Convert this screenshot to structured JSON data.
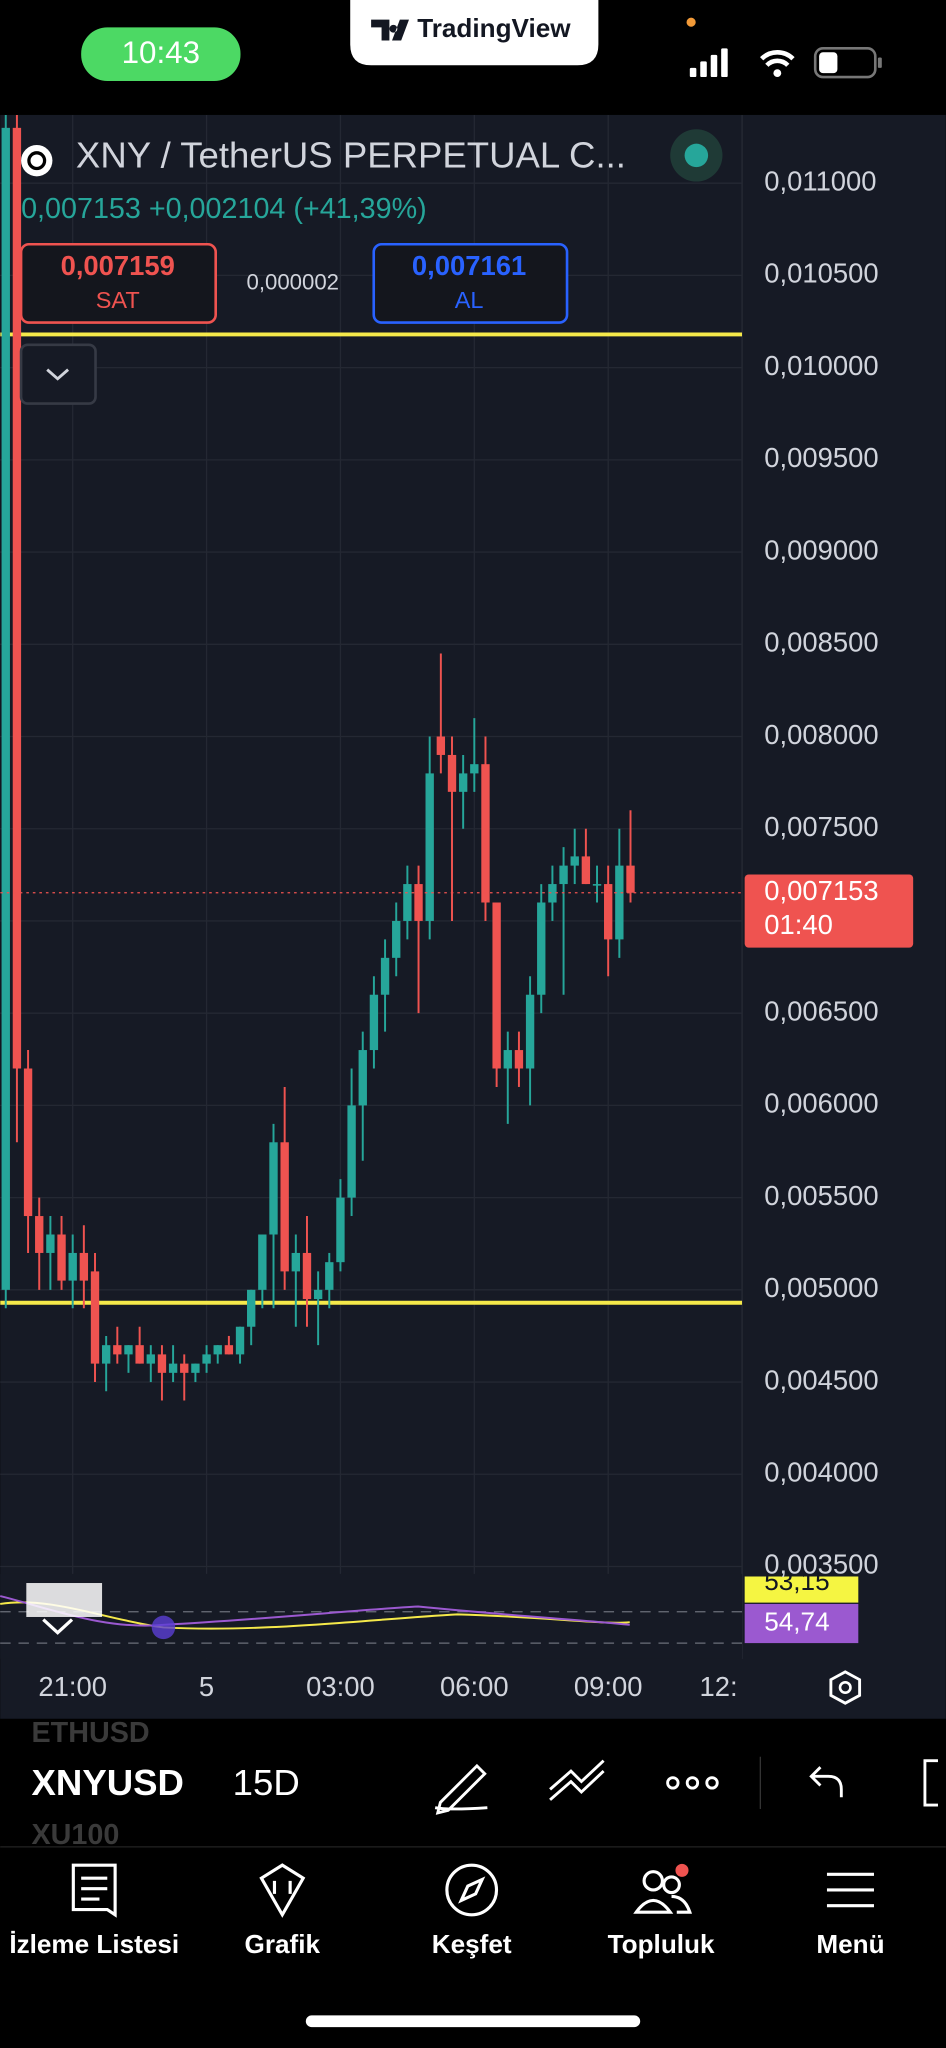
{
  "status_bar": {
    "time": "10:43",
    "app": "TradingView"
  },
  "header": {
    "symbol": "XNY / TetherUS PERPETUAL C...",
    "quote": "0,007153 +0,002104 (+41,39%)",
    "sell_price": "0,007159",
    "sell": "SAT",
    "spread": "0,000002",
    "buy_price": "0,007161",
    "buy": "AL"
  },
  "chart_data": {
    "type": "candlestick",
    "open": [
      0.005,
      0.0113,
      0.0062,
      0.0054,
      0.0052,
      0.0053,
      0.00505,
      0.0052,
      0.0051,
      0.0046,
      0.0047,
      0.00465,
      0.0047,
      0.0046,
      0.00465,
      0.00455,
      0.0046,
      0.00455,
      0.0046,
      0.00465,
      0.0047,
      0.00465,
      0.0048,
      0.005,
      0.0053,
      0.0058,
      0.0051,
      0.0052,
      0.00495,
      0.005,
      0.00515,
      0.0055,
      0.006,
      0.0063,
      0.0066,
      0.0068,
      0.007,
      0.0072,
      0.007,
      0.008,
      0.0079,
      0.0077,
      0.0078,
      0.00785,
      0.0071,
      0.0062,
      0.0063,
      0.0062,
      0.0066,
      0.0071,
      0.0072,
      0.0073,
      0.00735,
      0.0072,
      0.0072,
      0.0069,
      0.0073
    ],
    "high": [
      0.0114,
      0.0114,
      0.0063,
      0.0055,
      0.0054,
      0.0054,
      0.0053,
      0.00535,
      0.0052,
      0.00475,
      0.0048,
      0.0047,
      0.0048,
      0.0047,
      0.0047,
      0.0047,
      0.00465,
      0.0046,
      0.0047,
      0.0047,
      0.00475,
      0.0048,
      0.005,
      0.0053,
      0.0059,
      0.0061,
      0.0053,
      0.0054,
      0.0051,
      0.0052,
      0.0056,
      0.0062,
      0.0064,
      0.0067,
      0.0069,
      0.0071,
      0.0073,
      0.0073,
      0.008,
      0.00845,
      0.008,
      0.0079,
      0.0081,
      0.008,
      0.0071,
      0.0064,
      0.0064,
      0.0067,
      0.0072,
      0.0073,
      0.0074,
      0.0075,
      0.0075,
      0.0073,
      0.0073,
      0.0075,
      0.0076
    ],
    "low": [
      0.0049,
      0.0058,
      0.0052,
      0.005,
      0.005,
      0.005,
      0.0049,
      0.0049,
      0.0045,
      0.00445,
      0.0046,
      0.00455,
      0.0046,
      0.0045,
      0.0044,
      0.0045,
      0.0044,
      0.0045,
      0.00455,
      0.0046,
      0.00465,
      0.0046,
      0.0047,
      0.0049,
      0.0049,
      0.005,
      0.0048,
      0.0048,
      0.0047,
      0.0049,
      0.0051,
      0.0054,
      0.0057,
      0.0062,
      0.0064,
      0.0067,
      0.0069,
      0.0065,
      0.0069,
      0.0078,
      0.007,
      0.0075,
      0.0077,
      0.007,
      0.0061,
      0.0059,
      0.0061,
      0.006,
      0.0065,
      0.007,
      0.0066,
      0.0072,
      0.0072,
      0.0071,
      0.0067,
      0.0068,
      0.0071
    ],
    "close": [
      0.0113,
      0.0062,
      0.0054,
      0.0052,
      0.0053,
      0.00505,
      0.0052,
      0.00505,
      0.0046,
      0.0047,
      0.00465,
      0.0047,
      0.0046,
      0.00465,
      0.00455,
      0.0046,
      0.00455,
      0.0046,
      0.00465,
      0.0047,
      0.00465,
      0.0048,
      0.005,
      0.0053,
      0.0058,
      0.0051,
      0.0052,
      0.00495,
      0.005,
      0.00515,
      0.0055,
      0.006,
      0.0063,
      0.0066,
      0.0068,
      0.007,
      0.0072,
      0.007,
      0.0078,
      0.0079,
      0.0077,
      0.0078,
      0.00785,
      0.0071,
      0.0062,
      0.0063,
      0.0062,
      0.0066,
      0.0071,
      0.0072,
      0.0073,
      0.00735,
      0.0072,
      0.0072,
      0.0069,
      0.0073,
      0.007153
    ],
    "up_color": "#26a69a",
    "down_color": "#ef5350",
    "xlim": [
      -0.5,
      66
    ],
    "xticks": [
      {
        "value": 6,
        "label": "21:00"
      },
      {
        "value": 18,
        "label": "5"
      },
      {
        "value": 30,
        "label": "03:00"
      },
      {
        "value": 42,
        "label": "06:00"
      },
      {
        "value": 54,
        "label": "09:00"
      },
      {
        "value": 66,
        "label": "12:"
      }
    ],
    "ylim": [
      0.00346,
      0.01137
    ],
    "yticks": [
      {
        "value": 0.0035,
        "label": "0,003500"
      },
      {
        "value": 0.004,
        "label": "0,004000"
      },
      {
        "value": 0.0045,
        "label": "0,004500"
      },
      {
        "value": 0.005,
        "label": "0,005000"
      },
      {
        "value": 0.0055,
        "label": "0,005500"
      },
      {
        "value": 0.006,
        "label": "0,006000"
      },
      {
        "value": 0.0065,
        "label": "0,006500"
      },
      {
        "value": 0.007,
        "label": "0,007000"
      },
      {
        "value": 0.0075,
        "label": "0,007500"
      },
      {
        "value": 0.008,
        "label": "0,008000"
      },
      {
        "value": 0.0085,
        "label": "0,008500"
      },
      {
        "value": 0.009,
        "label": "0,009000"
      },
      {
        "value": 0.0095,
        "label": "0,009500"
      },
      {
        "value": 0.01,
        "label": "0,010000"
      },
      {
        "value": 0.0105,
        "label": "0,010500"
      },
      {
        "value": 0.011,
        "label": "0,011000"
      }
    ],
    "grid": true,
    "last_price": {
      "value": 0.007153,
      "label": "0,007153",
      "countdown": "01:40"
    },
    "hlines": [
      0.01018,
      0.00493
    ],
    "hline_color": "#f5e94a",
    "indicator_labels": [
      "53,15",
      "54,74"
    ]
  },
  "toolbar": {
    "prev_symbol": "ETHUSD",
    "symbol": "XNYUSD",
    "interval": "15D",
    "next_symbol": "XU100"
  },
  "tabs": [
    "İzleme Listesi",
    "Grafik",
    "Keşfet",
    "Topluluk",
    "Menü"
  ]
}
